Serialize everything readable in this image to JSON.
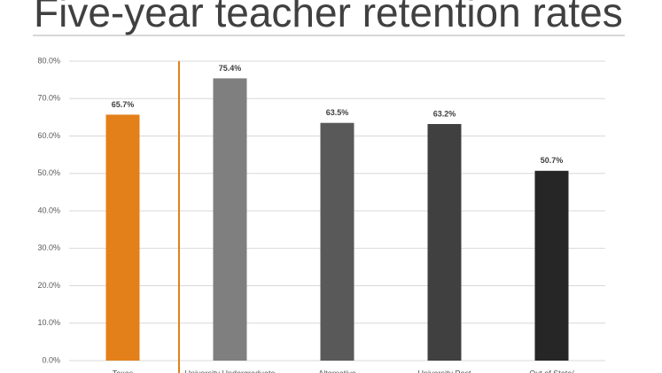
{
  "chart_data": {
    "type": "bar",
    "title": "Five-year teacher retention rates",
    "categories": [
      "Texas",
      "University Undergraduate",
      "Alternative",
      "University Post",
      "Out of State/"
    ],
    "series": [
      {
        "values": [
          65.7,
          75.4,
          63.5,
          63.2,
          50.7
        ],
        "value_labels": [
          "65.7%",
          "75.4%",
          "63.5%",
          "63.2%",
          "50.7%"
        ],
        "colors": [
          "#e3801a",
          "#7f7f7f",
          "#595959",
          "#404040",
          "#262626"
        ]
      }
    ],
    "ylim": [
      0,
      80
    ],
    "yticks": [
      {
        "value": 0,
        "label": "0.0%"
      },
      {
        "value": 10,
        "label": "10.0%"
      },
      {
        "value": 20,
        "label": "20.0%"
      },
      {
        "value": 30,
        "label": "30.0%"
      },
      {
        "value": 40,
        "label": "40.0%"
      },
      {
        "value": 50,
        "label": "50.0%"
      },
      {
        "value": 60,
        "label": "60.0%"
      },
      {
        "value": 70,
        "label": "70.0%"
      },
      {
        "value": 80,
        "label": "80.0%"
      }
    ],
    "grid": true
  }
}
